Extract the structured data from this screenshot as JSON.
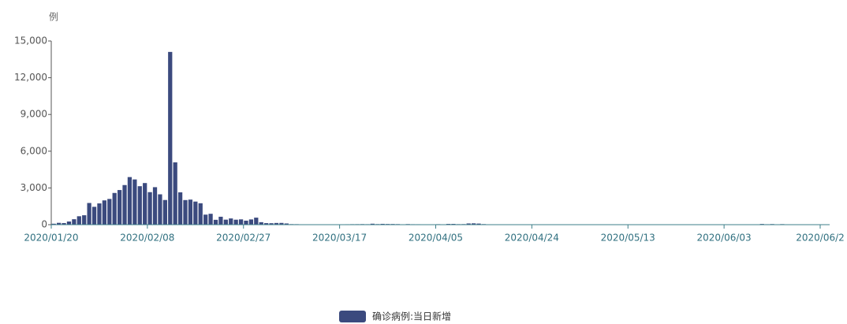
{
  "chart_data": {
    "type": "bar",
    "y_unit": "例",
    "legend": "确诊病例:当日新增",
    "color": "#3b4a7e",
    "categories": [
      "2020/01/20",
      null,
      null,
      null,
      null,
      null,
      null,
      null,
      null,
      null,
      null,
      null,
      null,
      null,
      null,
      null,
      null,
      null,
      null,
      "2020/02/08",
      null,
      null,
      null,
      null,
      null,
      null,
      null,
      null,
      null,
      null,
      null,
      null,
      null,
      null,
      null,
      null,
      null,
      null,
      "2020/02/27",
      null,
      null,
      null,
      null,
      null,
      null,
      null,
      null,
      null,
      null,
      null,
      null,
      null,
      null,
      null,
      null,
      null,
      null,
      "2020/03/17",
      null,
      null,
      null,
      null,
      null,
      null,
      null,
      null,
      null,
      null,
      null,
      null,
      null,
      null,
      null,
      null,
      null,
      null,
      "2020/04/05",
      null,
      null,
      null,
      null,
      null,
      null,
      null,
      null,
      null,
      null,
      null,
      null,
      null,
      null,
      null,
      null,
      null,
      null,
      "2020/04/24",
      null,
      null,
      null,
      null,
      null,
      null,
      null,
      null,
      null,
      null,
      null,
      null,
      null,
      null,
      null,
      null,
      null,
      null,
      "2020/05/13",
      null,
      null,
      null,
      null,
      null,
      null,
      null,
      null,
      null,
      null,
      null,
      null,
      null,
      null,
      null,
      null,
      null,
      null,
      "2020/06/03",
      null,
      null,
      null,
      null,
      null,
      null,
      null,
      null,
      null,
      null,
      null,
      null,
      null,
      null,
      null,
      null,
      null,
      null,
      "2020/06/2"
    ],
    "values": [
      77,
      149,
      131,
      259,
      444,
      688,
      769,
      1771,
      1459,
      1737,
      1982,
      2102,
      2590,
      2829,
      3235,
      3887,
      3694,
      3143,
      3399,
      2656,
      3062,
      2478,
      2015,
      14108,
      5090,
      2641,
      2009,
      2048,
      1886,
      1749,
      820,
      889,
      397,
      648,
      409,
      508,
      406,
      433,
      327,
      427,
      573,
      202,
      125,
      119,
      139,
      143,
      99,
      44,
      40,
      19,
      24,
      15,
      8,
      11,
      20,
      16,
      21,
      13,
      34,
      39,
      41,
      46,
      39,
      78,
      47,
      67,
      55,
      54,
      45,
      31,
      48,
      36,
      35,
      31,
      19,
      30,
      39,
      32,
      62,
      63,
      42,
      46,
      99,
      108,
      89,
      46,
      26,
      27,
      27,
      16,
      12,
      11,
      30,
      10,
      6,
      12,
      11,
      3,
      6,
      22,
      4,
      12,
      1,
      2,
      3,
      1,
      2,
      2,
      4,
      1,
      1,
      14,
      17,
      7,
      3,
      5,
      4,
      2,
      3,
      2,
      4,
      2,
      3,
      6,
      11,
      4,
      2,
      5,
      2,
      3,
      1,
      4,
      1,
      3,
      6,
      8,
      5,
      6,
      3,
      3,
      57,
      36,
      49,
      28,
      44,
      32,
      22,
      25,
      30,
      26,
      29,
      22,
      13
    ],
    "ylim": [
      0,
      15000
    ],
    "yticks": [
      0,
      {
        "value": 3000,
        "label": "3,000"
      },
      {
        "value": 6000,
        "label": "6,000"
      },
      {
        "value": 9000,
        "label": "9,000"
      },
      {
        "value": 12000,
        "label": "12,000"
      },
      {
        "value": 15000,
        "label": "15,000"
      }
    ]
  }
}
